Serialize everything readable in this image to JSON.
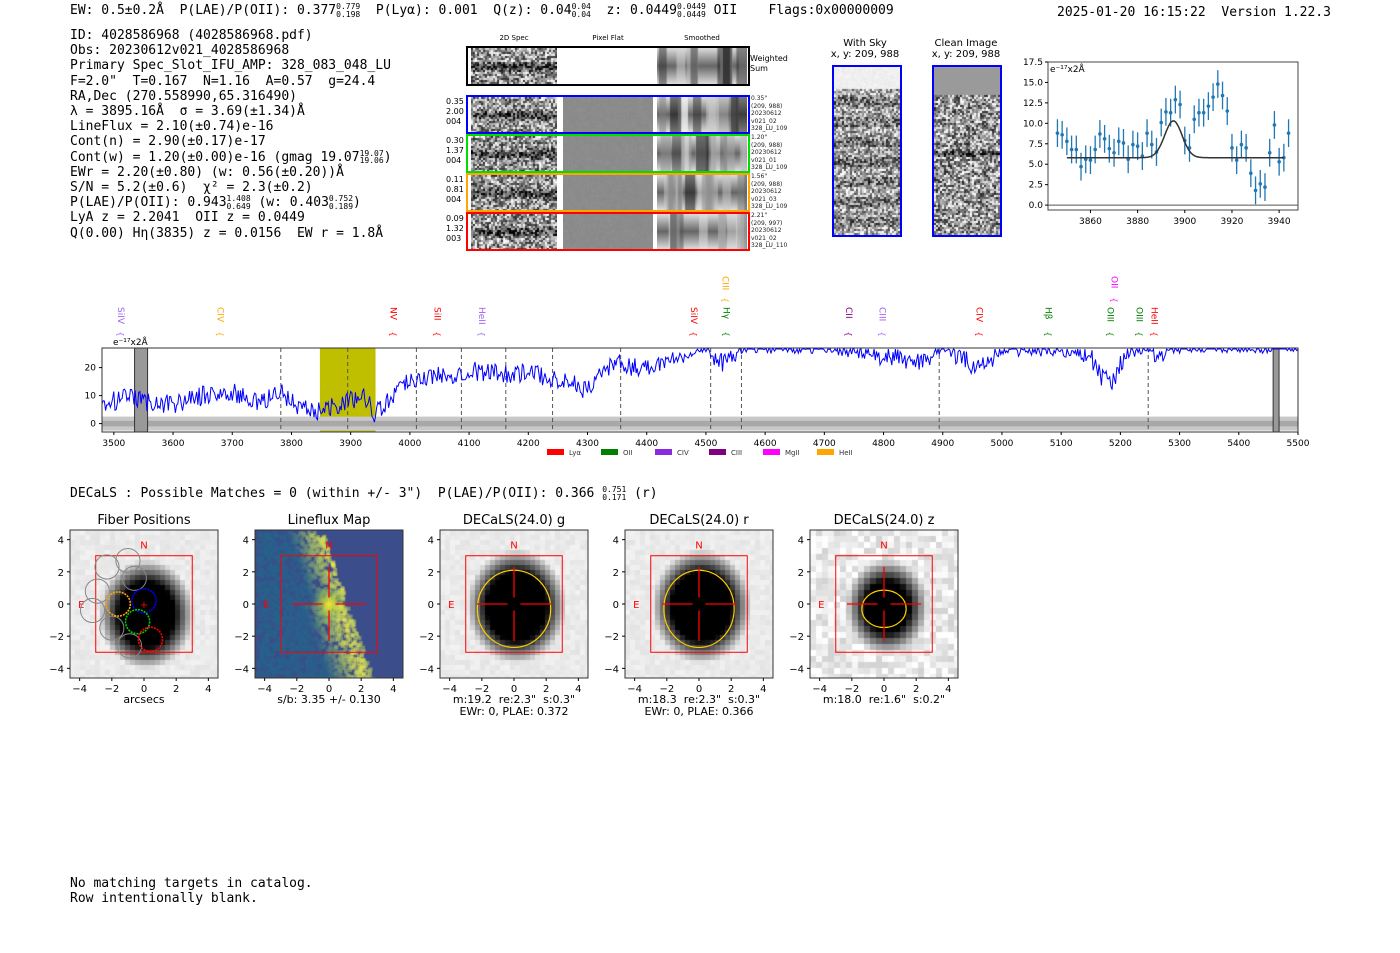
{
  "header": {
    "ew": "EW: 0.5±0.2Å",
    "plae_label": "P(LAE)/P(OII): 0.377",
    "plae_hi": "0.779",
    "plae_lo": "0.198",
    "plya": "P(Lyα): 0.001",
    "qz": "Q(z): 0.04",
    "qz_hi": "0.04",
    "qz_lo": "0.04",
    "z": "z: 0.0449",
    "z_hi": "0.0449",
    "z_lo": "0.0449",
    "z_line": "OII",
    "flags": "Flags:0x00000009",
    "timestamp": "2025-01-20 16:15:22",
    "version": "Version 1.22.3"
  },
  "info": {
    "lines": [
      "ID: 4028586968 (4028586968.pdf)",
      "Obs: 20230612v021_4028586968",
      "Primary Spec_Slot_IFU_AMP: 328_083_048_LU",
      "F=2.0\"  T=0.167  N=1.16  A=0.57  g=24.4",
      "RA,Dec (270.558990,65.316490)",
      "λ = 3895.16Å  σ = 3.69(±1.34)Å",
      "LineFlux = 2.10(±0.74)e-16",
      "Cont(n) = 2.90(±0.17)e-17"
    ],
    "contw": "Cont(w) = 1.20(±0.00)e-16 (gmag 19.07",
    "contw_hi": "19.07",
    "contw_lo": "19.06",
    "contw_end": ")",
    "ewr": "EWr = 2.20(±0.80) (w: 0.56(±0.20))Å",
    "sn": "S/N = 5.2(±0.6)  χ² = 2.3(±0.2)",
    "plae": "P(LAE)/P(OII): 0.943",
    "plae_hi": "1.408",
    "plae_lo": "0.649",
    "plae_w": " (w: 0.403",
    "plae_w_hi": "0.752",
    "plae_w_lo": "0.189",
    "plae_end": ")",
    "lya": "LyA z = 2.2041  OII z = 0.0449",
    "q": "Q(0.00) Hη(3835) z = 0.0156  EW r = 1.8Å"
  },
  "spec2d": {
    "columns": [
      "2D Spec",
      "Pixel Flat",
      "Smoothed"
    ],
    "weighted_label": "Weighted\nSum",
    "rows": [
      {
        "left": "0.35\n2.00\n004",
        "right": "0.35\"\n(209, 988)\n20230612\nv021_02\n328_LU_109",
        "color": "#0000ff"
      },
      {
        "left": "0.30\n1.37\n004",
        "right": "1.20\"\n(209, 988)\n20230612\nv021_01\n328_LU_109",
        "color": "#00dd00"
      },
      {
        "left": "0.11\n0.81\n004",
        "right": "1.56\"\n(209, 988)\n20230612\nv021_03\n328_LU_109",
        "color": "#ffa500"
      },
      {
        "left": "0.09\n1.32\n003",
        "right": "2.21\"\n(209, 997)\n20230612\nv021_02\n328_LU_110",
        "color": "#ff0000"
      }
    ]
  },
  "ccd": {
    "with_sky": "With Sky\nx, y: 209, 988",
    "clean": "Clean Image\nx, y: 209, 988"
  },
  "chart_data": [
    {
      "type": "scatter",
      "title": "",
      "unit_label": "e⁻¹⁷x2Å",
      "xlim": [
        3842,
        3948
      ],
      "ylim": [
        -0.6,
        17.5
      ],
      "xticks": [
        "3860",
        "3880",
        "3900",
        "3920",
        "3940"
      ],
      "yticks": [
        "0.0",
        "2.5",
        "5.0",
        "7.5",
        "10.0",
        "12.5",
        "15.0",
        "17.5"
      ],
      "x": [
        3846,
        3848,
        3850,
        3852,
        3854,
        3856,
        3858,
        3860,
        3862,
        3864,
        3866,
        3868,
        3870,
        3872,
        3874,
        3876,
        3878,
        3880,
        3882,
        3884,
        3886,
        3888,
        3890,
        3892,
        3894,
        3896,
        3898,
        3900,
        3902,
        3904,
        3906,
        3908,
        3910,
        3912,
        3914,
        3916,
        3918,
        3920,
        3922,
        3924,
        3926,
        3928,
        3930,
        3932,
        3934,
        3936,
        3938,
        3940,
        3942,
        3944
      ],
      "y": [
        8.8,
        8.6,
        7.8,
        6.8,
        6.8,
        4.7,
        5.6,
        5.5,
        6.8,
        8.7,
        8.1,
        6.9,
        6.4,
        7.8,
        7.6,
        5.6,
        7.4,
        7.2,
        6.0,
        8.8,
        7.4,
        6.5,
        10.1,
        11.4,
        11.3,
        12.9,
        12.3,
        7.9,
        7.0,
        10.5,
        11.3,
        11.3,
        12.1,
        13.2,
        14.8,
        13.4,
        11.5,
        7.0,
        5.5,
        7.4,
        7.0,
        3.9,
        1.8,
        2.6,
        2.2,
        6.4,
        9.8,
        5.3,
        5.8,
        8.8
      ],
      "yerr": 1.7,
      "fit": {
        "type": "gaussian",
        "center": 3895.16,
        "sigma": 3.69,
        "baseline": 5.8,
        "amplitude": 4.5,
        "xrange": [
          3850,
          3942
        ]
      }
    },
    {
      "type": "line",
      "title": "",
      "unit_label": "e⁻¹⁷x2Å",
      "xlim": [
        3480,
        5500
      ],
      "ylim": [
        -3,
        27
      ],
      "xticks": [
        "3500",
        "3600",
        "3700",
        "3800",
        "3900",
        "4000",
        "4100",
        "4200",
        "4300",
        "4400",
        "4500",
        "4600",
        "4700",
        "4800",
        "4900",
        "5000",
        "5100",
        "5200",
        "5300",
        "5400",
        "5500"
      ],
      "yticks": [
        "0",
        "10",
        "20"
      ],
      "x": [
        3480,
        3500,
        3520,
        3550,
        3600,
        3650,
        3700,
        3750,
        3780,
        3800,
        3830,
        3850,
        3880,
        3900,
        3920,
        3940,
        3960,
        3980,
        4000,
        4050,
        4100,
        4150,
        4200,
        4250,
        4300,
        4330,
        4350,
        4400,
        4450,
        4480,
        4500,
        4530,
        4560,
        4700,
        4860,
        4900,
        4960,
        5000,
        5100,
        5150,
        5170,
        5180,
        5190,
        5200,
        5230,
        5250,
        5265,
        5280,
        5400,
        5500
      ],
      "y": [
        5,
        8,
        9,
        8,
        7,
        10,
        11,
        7,
        12,
        8,
        4,
        5,
        7,
        8,
        11,
        4,
        7,
        13,
        16,
        17,
        19,
        18,
        18,
        16,
        12,
        20,
        21,
        20,
        24,
        26,
        27,
        21,
        27,
        27,
        22,
        27,
        20,
        26,
        26,
        24,
        16,
        15,
        16,
        22,
        26,
        27,
        22,
        27,
        27,
        27
      ],
      "error_band": true,
      "highlight_band": [
        3848,
        3942
      ],
      "masked": [
        [
          3535,
          3557
        ],
        [
          5458,
          5468
        ]
      ],
      "dashed_lines": [
        3782,
        3895,
        4011,
        4087,
        4162,
        4241,
        4356,
        4508,
        4560,
        4894,
        5247
      ],
      "line_labels": [
        {
          "name": "SiIV",
          "wave": 3512,
          "color": "#a060f0",
          "high": false
        },
        {
          "name": "CIV",
          "wave": 3680,
          "color": "#ffa500",
          "high": false
        },
        {
          "name": "NV",
          "wave": 3972,
          "color": "#ff0000",
          "high": false
        },
        {
          "name": "SiII",
          "wave": 4047,
          "color": "#ff0000",
          "high": false
        },
        {
          "name": "HeII",
          "wave": 4122,
          "color": "#a060f0",
          "high": false
        },
        {
          "name": "SiIV",
          "wave": 4480,
          "color": "#ff0000",
          "high": false
        },
        {
          "name": "CIII",
          "wave": 4533,
          "color": "#ffa500",
          "high": true
        },
        {
          "name": "Hγ",
          "wave": 4535,
          "color": "#008000",
          "high": false
        },
        {
          "name": "CII",
          "wave": 4742,
          "color": "#800080",
          "high": false
        },
        {
          "name": "CIII",
          "wave": 4798,
          "color": "#a060f0",
          "high": false
        },
        {
          "name": "CIV",
          "wave": 4962,
          "color": "#ff0000",
          "high": false
        },
        {
          "name": "Hβ",
          "wave": 5079,
          "color": "#008000",
          "high": false
        },
        {
          "name": "OII",
          "wave": 5190,
          "color": "#ff00ff",
          "high": true
        },
        {
          "name": "OIII",
          "wave": 5183,
          "color": "#008000",
          "high": false
        },
        {
          "name": "OIII",
          "wave": 5232,
          "color": "#008000",
          "high": false
        },
        {
          "name": "HeII",
          "wave": 5258,
          "color": "#ff0000",
          "high": false
        }
      ],
      "legend": [
        {
          "name": "Lyα",
          "color": "#ff0000"
        },
        {
          "name": "OII",
          "color": "#008000"
        },
        {
          "name": "CIV",
          "color": "#8a2be2"
        },
        {
          "name": "CIII",
          "color": "#800080"
        },
        {
          "name": "MgII",
          "color": "#ff00ff"
        },
        {
          "name": "HeII",
          "color": "#ffa500"
        }
      ],
      "legend_position": "bottom-right"
    }
  ],
  "decals": {
    "summary": "DECaLS : Possible Matches = 0 (within +/- 3\")  P(LAE)/P(OII): 0.366",
    "hi": "0.751",
    "lo": "0.171",
    "band": "(r)"
  },
  "cutouts": {
    "ticks": [
      "−4",
      "−2",
      "0",
      "2",
      "4"
    ],
    "north": "N",
    "east": "E",
    "panels": [
      {
        "title": "Fiber Positions",
        "caption": "arcsecs",
        "kind": "fibers"
      },
      {
        "title": "Lineflux Map",
        "caption": "s/b: 3.35 +/- 0.130",
        "kind": "flux"
      },
      {
        "title": "DECaLS(24.0) g",
        "caption": "m:19.2  re:2.3\"  s:0.3\"\nEWr: 0, PLAE: 0.372",
        "kind": "img",
        "ell": [
          3.2,
          2.4
        ]
      },
      {
        "title": "DECaLS(24.0) r",
        "caption": "m:18.3  re:2.3\"  s:0.3\"\nEWr: 0, PLAE: 0.366",
        "kind": "img",
        "ell": [
          3.2,
          2.3
        ]
      },
      {
        "title": "DECaLS(24.0) z",
        "caption": "m:18.0  re:1.6\"  s:0.2\"",
        "kind": "imgz",
        "ell": [
          1.55,
          1.45
        ]
      }
    ]
  },
  "footer": [
    "No matching targets in catalog.",
    "Row intentionally blank."
  ]
}
